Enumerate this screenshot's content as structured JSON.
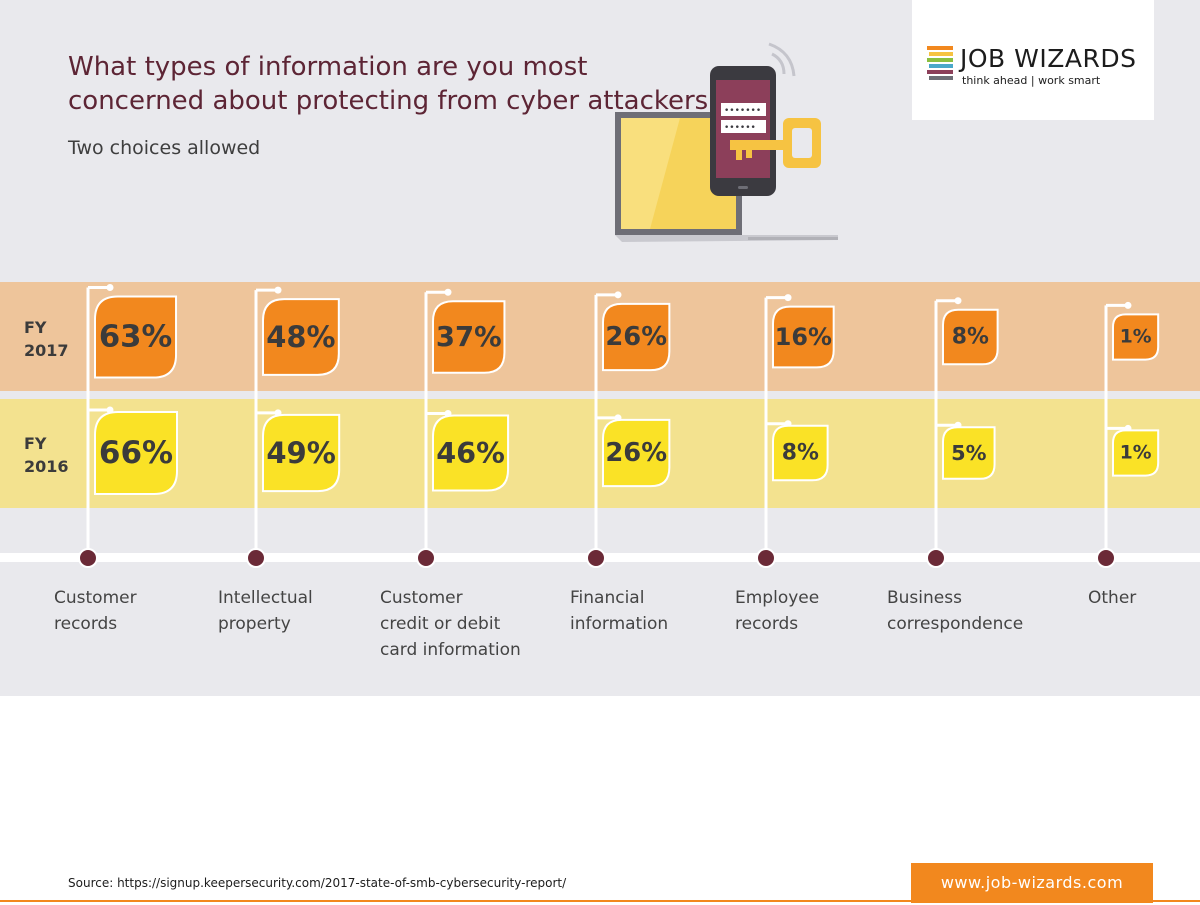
{
  "header": {
    "title": "What types of information are you most concerned about protecting from cyber attackers?",
    "subtitle": "Two choices allowed"
  },
  "logo": {
    "name": "JOB WIZARDS",
    "tagline": "think ahead | work smart"
  },
  "illustration": {
    "icons": [
      "laptop-icon",
      "smartphone-icon",
      "key-icon",
      "wifi-signal-icon"
    ],
    "password_mask": "•••••••",
    "password_mask_2": "••••••"
  },
  "rows": {
    "fy2017": {
      "line1": "FY",
      "line2": "2017"
    },
    "fy2016": {
      "line1": "FY",
      "line2": "2016"
    }
  },
  "chart_data": {
    "type": "bar",
    "categories": [
      "Customer records",
      "Intellectual property",
      "Customer credit or debit card information",
      "Financial information",
      "Employee records",
      "Business correspondence",
      "Other"
    ],
    "category_lines": [
      [
        "Customer",
        "records"
      ],
      [
        "Intellectual",
        "property"
      ],
      [
        "Customer",
        "credit or debit",
        "card information"
      ],
      [
        "Financial",
        "information"
      ],
      [
        "Employee",
        "records"
      ],
      [
        "Business",
        "correspondence"
      ],
      [
        "Other"
      ]
    ],
    "series": [
      {
        "name": "FY 2017",
        "values": [
          63,
          48,
          37,
          26,
          16,
          8,
          1
        ],
        "labels": [
          "63%",
          "48%",
          "37%",
          "26%",
          "16%",
          "8%",
          "1%"
        ],
        "color": "#f2881e"
      },
      {
        "name": "FY 2016",
        "values": [
          66,
          49,
          46,
          26,
          8,
          5,
          1
        ],
        "labels": [
          "66%",
          "49%",
          "46%",
          "26%",
          "8%",
          "5%",
          "1%"
        ],
        "color": "#fae226"
      }
    ],
    "unit": "%",
    "legend": "left"
  },
  "footer": {
    "source": "Source: https://signup.keepersecurity.com/2017-state-of-smb-cybersecurity-report/",
    "url": "www.job-wizards.com"
  },
  "colors": {
    "background": "#e9e9ed",
    "title": "#5d2535",
    "band_2017": "#eec59b",
    "band_2016": "#f3e28f",
    "accent_orange": "#f2881e",
    "accent_yellow": "#fae226",
    "marker": "#6b2a37"
  }
}
